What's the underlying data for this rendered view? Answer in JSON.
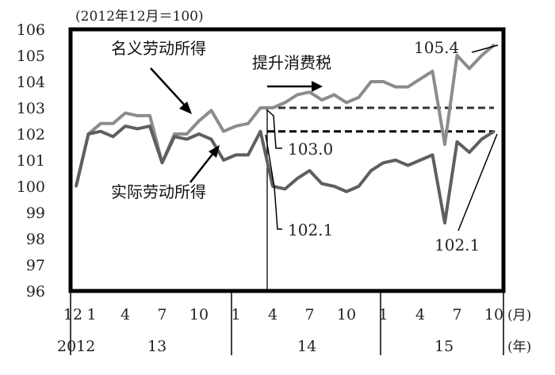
{
  "chart_data": {
    "type": "line",
    "title": "",
    "unit_note": "(2012年12月＝100)",
    "ylim": [
      96,
      106
    ],
    "y_ticks": [
      "96",
      "97",
      "98",
      "99",
      "100",
      "101",
      "102",
      "103",
      "104",
      "105",
      "106"
    ],
    "x_tick_labels": [
      "12",
      "1",
      "4",
      "7",
      "10",
      "1",
      "4",
      "7",
      "10",
      "1",
      "4",
      "7",
      "10"
    ],
    "x_unit_month": "(月)",
    "year_labels": [
      "2012",
      "13",
      "14",
      "15"
    ],
    "x_unit_year": "(年)",
    "grid": false,
    "months": [
      "2012-12",
      "2013-01",
      "2013-02",
      "2013-03",
      "2013-04",
      "2013-05",
      "2013-06",
      "2013-07",
      "2013-08",
      "2013-09",
      "2013-10",
      "2013-11",
      "2013-12",
      "2014-01",
      "2014-02",
      "2014-03",
      "2014-04",
      "2014-05",
      "2014-06",
      "2014-07",
      "2014-08",
      "2014-09",
      "2014-10",
      "2014-11",
      "2014-12",
      "2015-01",
      "2015-02",
      "2015-03",
      "2015-04",
      "2015-05",
      "2015-06",
      "2015-07",
      "2015-08",
      "2015-09",
      "2015-10"
    ],
    "series": [
      {
        "name": "名义劳动所得",
        "color": "#8c8c8c",
        "values": [
          100.0,
          102.0,
          102.4,
          102.4,
          102.8,
          102.7,
          102.7,
          100.9,
          102.0,
          102.0,
          102.5,
          102.9,
          102.1,
          102.3,
          102.4,
          103.0,
          103.0,
          103.2,
          103.5,
          103.6,
          103.3,
          103.5,
          103.2,
          103.4,
          104.0,
          104.0,
          103.8,
          103.8,
          104.1,
          104.4,
          101.6,
          105.0,
          104.5,
          105.0,
          105.4
        ]
      },
      {
        "name": "实际劳动所得",
        "color": "#5f5f5f",
        "values": [
          100.0,
          102.0,
          102.1,
          101.9,
          102.3,
          102.2,
          102.3,
          100.9,
          101.9,
          101.8,
          102.0,
          101.8,
          101.0,
          101.2,
          101.2,
          102.1,
          100.0,
          99.9,
          100.3,
          100.6,
          100.1,
          100.0,
          99.8,
          100.0,
          100.6,
          100.9,
          101.0,
          100.8,
          101.0,
          101.2,
          98.6,
          101.7,
          101.3,
          101.8,
          102.1
        ]
      }
    ],
    "reference_levels": [
      {
        "label": "103.0",
        "value": 103.0
      },
      {
        "label": "102.1",
        "value": 102.1
      }
    ],
    "annotations": {
      "nominal_label": "名义劳动所得",
      "real_label": "实际劳动所得",
      "tax_label": "提升消费税",
      "nominal_end_label": "105.4",
      "real_end_label": "102.1",
      "level_nominal_label": "103.0",
      "level_real_label": "102.1"
    },
    "event_month": "2014-04"
  }
}
